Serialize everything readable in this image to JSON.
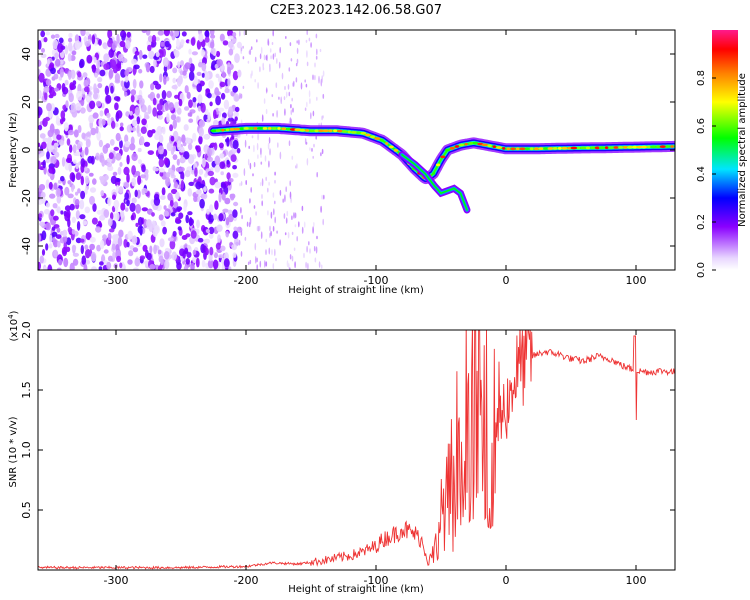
{
  "figure": {
    "title": "C2E3.2023.142.06.58.G07"
  },
  "chart_data": [
    {
      "type": "heatmap",
      "xlabel": "Height of straight line (km)",
      "ylabel": "Frequency (Hz)",
      "xlim": [
        -360,
        130
      ],
      "ylim": [
        -50,
        50
      ],
      "xticks": [
        -300,
        -200,
        -100,
        0,
        100
      ],
      "yticks": [
        -40,
        -20,
        0,
        20,
        40
      ],
      "colorbar": {
        "label": "Normalized spectral amplitude",
        "range": [
          0,
          1
        ],
        "ticks": [
          "0.0",
          "0.2",
          "0.4",
          "0.6",
          "0.8"
        ],
        "colormap": "rainbow",
        "colors": [
          "#ffffff",
          "#e8d6ff",
          "#8a00ff",
          "#0000ff",
          "#00e5ff",
          "#00ff00",
          "#ffff00",
          "#ff8000",
          "#ff0000",
          "#ff1a8c"
        ]
      },
      "ridge": {
        "x": [
          -225,
          -200,
          -175,
          -150,
          -130,
          -110,
          -95,
          -80,
          -70,
          -62,
          -56,
          -50,
          -45,
          -40,
          -35,
          -25,
          -15,
          -5,
          0,
          20,
          50,
          80,
          100,
          130
        ],
        "y": [
          8,
          9,
          9,
          8,
          8,
          7,
          4,
          -2,
          -8,
          -12,
          -10,
          -4,
          0,
          1,
          2,
          3,
          2,
          1,
          0.5,
          0.5,
          0.8,
          1,
          1.2,
          1.5
        ]
      },
      "branch": {
        "x": [
          -80,
          -70,
          -62,
          -55,
          -50,
          -45,
          -40,
          -35,
          -30
        ],
        "y": [
          -2,
          -6,
          -10,
          -15,
          -18,
          -17,
          -16,
          -18,
          -25
        ]
      },
      "noise_region": {
        "x_range": [
          -360,
          -205
        ],
        "y_range": [
          -50,
          50
        ]
      }
    },
    {
      "type": "line",
      "xlabel": "Height of straight line (km)",
      "ylabel": "SNR (10 * v/v)",
      "y_scale_label": "(x10",
      "y_scale_exp": "4",
      "y_scale_close": ")",
      "xlim": [
        -360,
        130
      ],
      "ylim": [
        0,
        2.0
      ],
      "xticks": [
        -300,
        -200,
        -100,
        0,
        100
      ],
      "yticks": [
        "0.5",
        "1.0",
        "1.5",
        "2.0"
      ],
      "color": "#ee3333",
      "series": [
        {
          "x": [
            -360,
            -300,
            -250,
            -200,
            -180,
            -160,
            -140,
            -120,
            -110,
            -100,
            -95,
            -90,
            -85,
            -80,
            -75,
            -70,
            -65,
            -60,
            -55,
            -50,
            -45,
            -40,
            -35,
            -30,
            -25,
            -20,
            -15,
            -10,
            -5,
            0,
            5,
            10,
            20,
            30,
            40,
            50,
            60,
            70,
            80,
            90,
            95,
            100,
            110,
            120,
            130
          ],
          "y": [
            0.02,
            0.02,
            0.02,
            0.03,
            0.06,
            0.05,
            0.08,
            0.12,
            0.15,
            0.2,
            0.25,
            0.28,
            0.3,
            0.35,
            0.32,
            0.3,
            0.25,
            0.08,
            0.15,
            0.45,
            0.6,
            0.9,
            1.2,
            1.3,
            1.4,
            1.3,
            1.2,
            1.1,
            1.3,
            1.35,
            1.55,
            1.7,
            1.78,
            1.82,
            1.8,
            1.76,
            1.74,
            1.78,
            1.76,
            1.7,
            1.68,
            1.66,
            1.65,
            1.66,
            1.65
          ]
        }
      ]
    }
  ]
}
